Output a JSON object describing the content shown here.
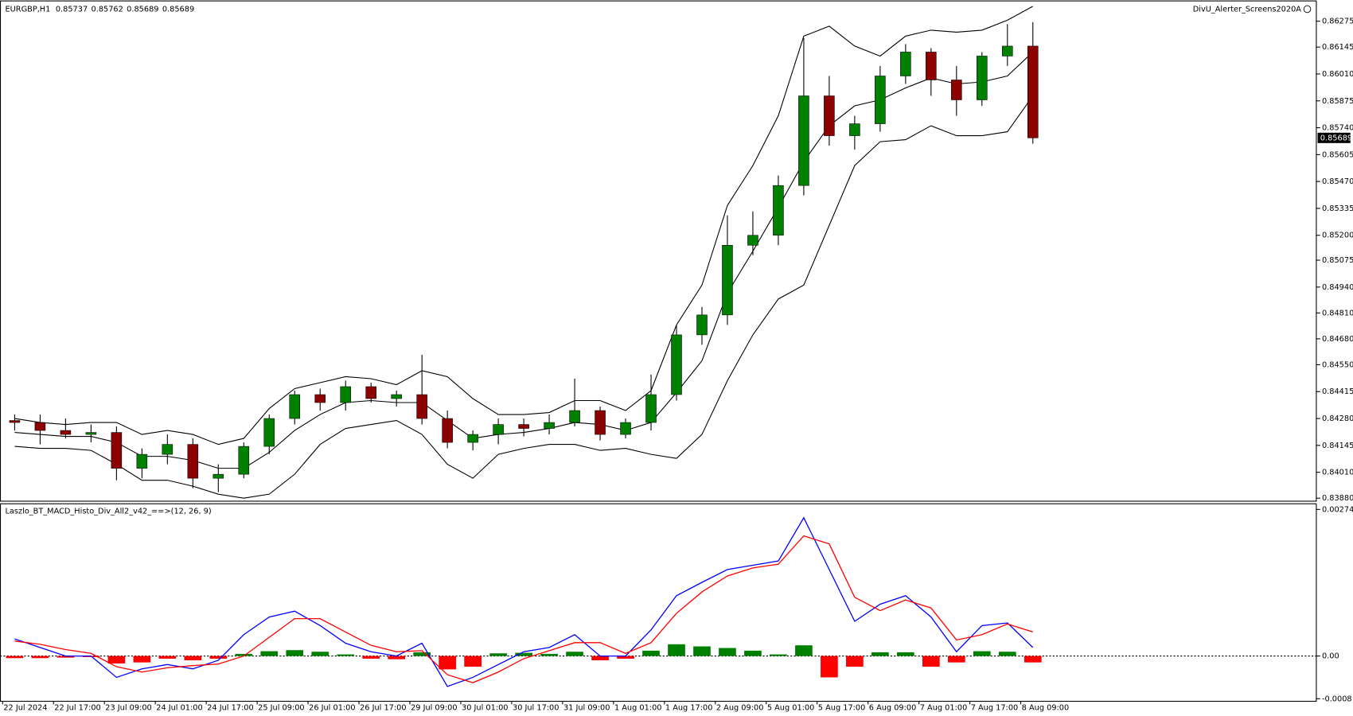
{
  "chart_data": [
    {
      "type": "candlestick",
      "title": "EURGBP,H1",
      "header_values": [
        0.85737,
        0.85762,
        0.85689,
        0.85689
      ],
      "annotation": "DivU_Alerter_Screens2020A",
      "categories": [
        "22 Jul 2024",
        null,
        "22 Jul 17:00",
        null,
        "23 Jul 09:00",
        null,
        "24 Jul 01:00",
        null,
        "24 Jul 17:00",
        null,
        "25 Jul 09:00",
        null,
        "26 Jul 01:00",
        null,
        "26 Jul 17:00",
        null,
        "29 Jul 09:00",
        null,
        "30 Jul 01:00",
        null,
        "30 Jul 17:00",
        null,
        "31 Jul 09:00",
        null,
        "1 Aug 01:00",
        null,
        "1 Aug 17:00",
        null,
        "2 Aug 09:00",
        null,
        "5 Aug 01:00",
        null,
        "5 Aug 17:00",
        null,
        "6 Aug 09:00",
        null,
        "7 Aug 01:00",
        null,
        "7 Aug 17:00",
        null,
        "8 Aug 09:00"
      ],
      "open": [
        0.8427,
        0.8426,
        0.8422,
        0.842,
        0.8421,
        0.8403,
        0.841,
        0.8415,
        0.8398,
        0.84,
        0.8414,
        0.8428,
        0.844,
        0.8436,
        0.8444,
        0.8438,
        0.844,
        0.8428,
        0.8416,
        0.842,
        0.8425,
        0.8423,
        0.8426,
        0.8432,
        0.842,
        0.8426,
        0.844,
        0.847,
        0.848,
        0.8515,
        0.852,
        0.8545,
        0.859,
        0.857,
        0.8576,
        0.86,
        0.8612,
        0.8598,
        0.8588,
        0.861,
        0.8615
      ],
      "high": [
        0.843,
        0.843,
        0.8428,
        0.8425,
        0.8424,
        0.8413,
        0.842,
        0.8418,
        0.8405,
        0.8416,
        0.843,
        0.8442,
        0.8443,
        0.8447,
        0.8446,
        0.8442,
        0.846,
        0.8432,
        0.8422,
        0.8428,
        0.8428,
        0.843,
        0.8448,
        0.8434,
        0.8428,
        0.845,
        0.8475,
        0.8484,
        0.853,
        0.8532,
        0.855,
        0.8619,
        0.86,
        0.858,
        0.8605,
        0.8616,
        0.8614,
        0.8605,
        0.8612,
        0.8626,
        0.8627
      ],
      "low": [
        0.8422,
        0.8415,
        0.8418,
        0.8416,
        0.8397,
        0.8398,
        0.8405,
        0.8393,
        0.8391,
        0.8398,
        0.841,
        0.8425,
        0.8432,
        0.8432,
        0.8436,
        0.8434,
        0.8425,
        0.8413,
        0.8412,
        0.8415,
        0.8419,
        0.842,
        0.8424,
        0.8417,
        0.8418,
        0.8422,
        0.8437,
        0.8465,
        0.8475,
        0.851,
        0.8515,
        0.854,
        0.8565,
        0.8563,
        0.8572,
        0.8596,
        0.859,
        0.858,
        0.8585,
        0.8605,
        0.8566
      ],
      "close": [
        0.8426,
        0.8422,
        0.842,
        0.8421,
        0.8403,
        0.841,
        0.8415,
        0.8398,
        0.84,
        0.8414,
        0.8428,
        0.844,
        0.8436,
        0.8444,
        0.8438,
        0.844,
        0.8428,
        0.8416,
        0.842,
        0.8425,
        0.8423,
        0.8426,
        0.8432,
        0.842,
        0.8426,
        0.844,
        0.847,
        0.848,
        0.8515,
        0.852,
        0.8545,
        0.859,
        0.857,
        0.8576,
        0.86,
        0.8612,
        0.8598,
        0.8588,
        0.861,
        0.8615,
        0.85689
      ],
      "up_color": "#008000",
      "down_color": "#8b0000",
      "series": [
        {
          "color": "#000000",
          "values": [
            0.8428,
            0.8426,
            0.8425,
            0.8426,
            0.8426,
            0.842,
            0.8422,
            0.842,
            0.8415,
            0.8418,
            0.8433,
            0.8443,
            0.8446,
            0.8449,
            0.8448,
            0.8445,
            0.8452,
            0.8449,
            0.8438,
            0.843,
            0.843,
            0.8431,
            0.8437,
            0.8437,
            0.8432,
            0.8442,
            0.8475,
            0.8495,
            0.8535,
            0.8555,
            0.858,
            0.862,
            0.8625,
            0.8615,
            0.861,
            0.862,
            0.8623,
            0.8622,
            0.8623,
            0.8628,
            0.8635
          ]
        },
        {
          "color": "#000000",
          "values": [
            0.8421,
            0.842,
            0.8419,
            0.8419,
            0.8416,
            0.8409,
            0.8409,
            0.8407,
            0.8403,
            0.8403,
            0.8411,
            0.8422,
            0.843,
            0.8436,
            0.8437,
            0.8436,
            0.8436,
            0.8427,
            0.8418,
            0.842,
            0.8421,
            0.8423,
            0.8426,
            0.8425,
            0.8422,
            0.8426,
            0.8441,
            0.8457,
            0.8491,
            0.8512,
            0.8534,
            0.8557,
            0.8575,
            0.8585,
            0.8588,
            0.8594,
            0.8599,
            0.8596,
            0.8597,
            0.86,
            0.8612
          ]
        },
        {
          "color": "#000000",
          "values": [
            0.8414,
            0.8413,
            0.8413,
            0.8412,
            0.8405,
            0.8397,
            0.8397,
            0.8394,
            0.839,
            0.8388,
            0.839,
            0.84,
            0.8415,
            0.8423,
            0.8425,
            0.8427,
            0.842,
            0.8405,
            0.8398,
            0.841,
            0.8413,
            0.8415,
            0.8415,
            0.8412,
            0.8413,
            0.841,
            0.8408,
            0.842,
            0.8447,
            0.847,
            0.8488,
            0.8495,
            0.8525,
            0.8555,
            0.8567,
            0.8568,
            0.8575,
            0.857,
            0.857,
            0.8572,
            0.859
          ]
        }
      ],
      "last_price": 0.85689,
      "ylim": [
        0.83867,
        0.86379
      ],
      "yticks": [
        0.86275,
        0.86145,
        {
          "value": 0.8601,
          "label": "0.86010"
        },
        0.85875,
        {
          "value": 0.8574,
          "label": "0.85740"
        },
        0.85605,
        {
          "value": 0.8547,
          "label": "0.85470"
        },
        0.85335,
        {
          "value": 0.852,
          "label": "0.85200"
        },
        0.85075,
        {
          "value": 0.8494,
          "label": "0.84940"
        },
        {
          "value": 0.8481,
          "label": "0.84810"
        },
        {
          "value": 0.8468,
          "label": "0.84680"
        },
        {
          "value": 0.8455,
          "label": "0.84550"
        },
        0.84415,
        {
          "value": 0.8428,
          "label": "0.84280"
        },
        0.84145,
        {
          "value": 0.8401,
          "label": "0.84010"
        },
        {
          "value": 0.8388,
          "label": "0.83880"
        }
      ]
    },
    {
      "type": "macd",
      "title": "Laszlo_BT_MACD_Histo_Div_All2_v42_==>(12, 26, 9)",
      "series": [
        {
          "color": [
            "#008000",
            "#ff0000"
          ],
          "values": [
            -4e-05,
            -4e-05,
            -3e-05,
            -2e-05,
            -0.00014,
            -0.00012,
            -5e-05,
            -8e-05,
            -5e-05,
            4e-05,
            9e-05,
            0.00011,
            8e-05,
            3e-05,
            -5e-05,
            -6e-05,
            7e-05,
            -0.00025,
            -0.0002,
            5e-05,
            6e-05,
            4e-05,
            8e-05,
            -8e-05,
            -5e-05,
            0.0001,
            0.00022,
            0.00018,
            0.00015,
            0.0001,
            3e-05,
            0.0002,
            -0.0004,
            -0.0002,
            7e-05,
            7e-05,
            -0.0002,
            -0.00012,
            9e-05,
            8e-05,
            -0.00012
          ]
        },
        {
          "color": "#0000ff",
          "values": [
            0.00032,
            0.00016,
            0,
            0,
            -0.0004,
            -0.00024,
            -0.00016,
            -0.00024,
            -8e-05,
            0.0004,
            0.00073,
            0.00084,
            0.00057,
            0.00024,
            8e-05,
            0,
            0.00024,
            -0.00057,
            -0.0004,
            -0.00016,
            8e-05,
            0.00016,
            0.0004,
            0,
            0,
            0.00049,
            0.00113,
            0.00138,
            0.00162,
            0.0017,
            0.00178,
            0.00259,
            0.00162,
            0.00065,
            0.00097,
            0.00113,
            0.00073,
            8e-05,
            0.00057,
            0.00062,
            0.00016
          ]
        },
        {
          "color": "#ff0000",
          "values": [
            0.00028,
            0.00022,
            0.00012,
            5e-05,
            -0.0002,
            -0.0003,
            -0.00022,
            -0.00018,
            -0.00015,
            0,
            0.00035,
            0.0007,
            0.0007,
            0.00045,
            0.0002,
            8e-05,
            0.0001,
            -0.00035,
            -0.0005,
            -0.0003,
            -5e-05,
            0.0001,
            0.00025,
            0.00025,
            5e-05,
            0.00025,
            0.0008,
            0.0012,
            0.0015,
            0.00165,
            0.00172,
            0.00225,
            0.0021,
            0.0011,
            0.00085,
            0.00105,
            0.0009,
            0.0003,
            0.0004,
            0.0006,
            0.00045
          ]
        }
      ],
      "ylim": [
        -0.00084,
        0.00286
      ],
      "yticks": [
        0.002746,
        {
          "value": 0,
          "label": "0.00"
        },
        -0.0008
      ]
    }
  ]
}
